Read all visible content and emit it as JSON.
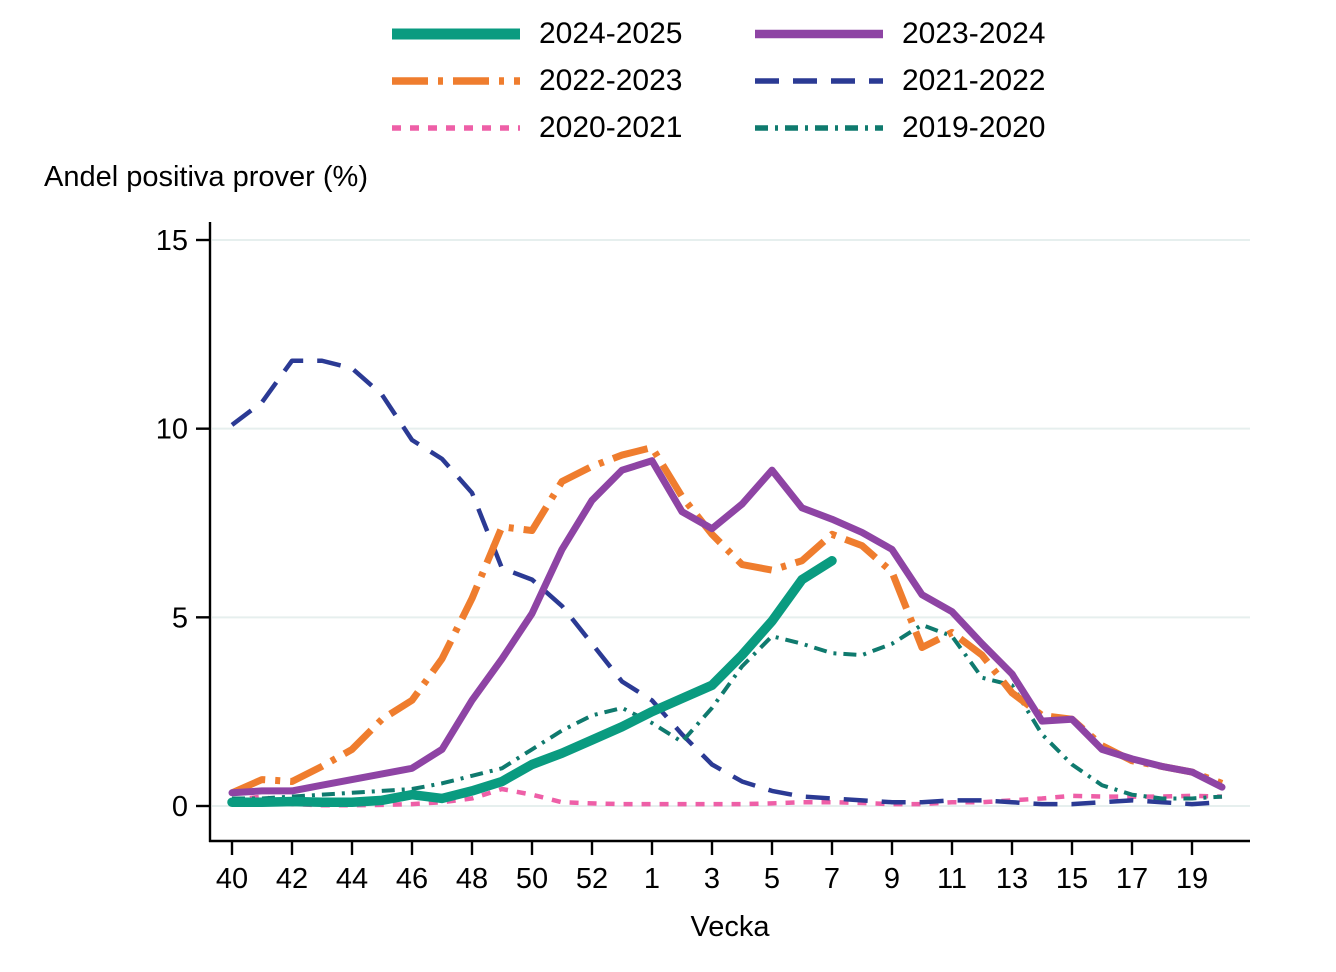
{
  "title": "Andel positiva prover (%)",
  "chart_data": {
    "type": "line",
    "title": "Andel positiva prover (%)",
    "xlabel": "Vecka",
    "ylabel": "Andel positiva prover (%)",
    "ylim": [
      0,
      15
    ],
    "yticks": [
      0,
      5,
      10,
      15
    ],
    "grid": "horizontal-light",
    "legend_position": "top-center-two-columns",
    "x_categories": [
      "40",
      "41",
      "42",
      "43",
      "44",
      "45",
      "46",
      "47",
      "48",
      "49",
      "50",
      "51",
      "52",
      "53",
      "1",
      "2",
      "3",
      "4",
      "5",
      "6",
      "7",
      "8",
      "9",
      "10",
      "11",
      "12",
      "13",
      "14",
      "15",
      "16",
      "17",
      "18",
      "19",
      "20"
    ],
    "x_tick_labels": [
      "40",
      "42",
      "44",
      "46",
      "48",
      "50",
      "52",
      "1",
      "3",
      "5",
      "7",
      "9",
      "11",
      "13",
      "15",
      "17",
      "19"
    ],
    "x_tick_every": 2,
    "series": [
      {
        "name": "2024-2025",
        "color": "#0a9b80",
        "style": "solid",
        "width": 9.5,
        "dash": "",
        "values": [
          0.1,
          0.1,
          0.12,
          0.1,
          0.1,
          0.15,
          0.3,
          0.2,
          0.4,
          0.65,
          1.1,
          1.4,
          1.75,
          2.1,
          2.5,
          2.85,
          3.2,
          4.0,
          4.9,
          6.0,
          6.5,
          null,
          null,
          null,
          null,
          null,
          null,
          null,
          null,
          null,
          null,
          null,
          null,
          null
        ]
      },
      {
        "name": "2023-2024",
        "color": "#8e44a4",
        "style": "solid",
        "width": 7,
        "dash": "",
        "values": [
          0.35,
          0.4,
          0.4,
          0.55,
          0.7,
          0.85,
          1.0,
          1.5,
          2.8,
          3.9,
          5.1,
          6.8,
          8.1,
          8.9,
          9.15,
          7.8,
          7.35,
          8.0,
          8.9,
          7.9,
          7.6,
          7.25,
          6.8,
          5.6,
          5.15,
          4.3,
          3.5,
          2.25,
          2.3,
          1.5,
          1.25,
          1.05,
          0.9,
          0.5
        ]
      },
      {
        "name": "2022-2023",
        "color": "#ef7d2e",
        "style": "dash-dot",
        "width": 7,
        "dash": "36 10 5 10",
        "values": [
          0.35,
          0.7,
          0.65,
          1.05,
          1.5,
          2.3,
          2.8,
          3.9,
          5.5,
          7.4,
          7.3,
          8.6,
          9.0,
          9.3,
          9.5,
          8.2,
          7.2,
          6.4,
          6.25,
          6.5,
          7.2,
          6.9,
          6.2,
          4.2,
          4.6,
          4.0,
          3.0,
          2.4,
          2.3,
          1.6,
          1.2,
          1.05,
          0.9,
          0.6
        ]
      },
      {
        "name": "2021-2022",
        "color": "#2b3a94",
        "style": "dashed",
        "width": 4.5,
        "dash": "24 14",
        "values": [
          10.1,
          10.7,
          11.8,
          11.8,
          11.6,
          10.9,
          9.7,
          9.2,
          8.3,
          6.3,
          6.0,
          5.3,
          4.3,
          3.3,
          2.8,
          1.9,
          1.1,
          0.65,
          0.4,
          0.25,
          0.2,
          0.15,
          0.1,
          0.1,
          0.15,
          0.15,
          0.1,
          0.05,
          0.05,
          0.1,
          0.15,
          0.1,
          0.05,
          0.1
        ]
      },
      {
        "name": "2020-2021",
        "color": "#ee5fa7",
        "style": "dotted",
        "width": 4.5,
        "dash": "9 9",
        "values": [
          0.15,
          0.25,
          0.05,
          0.02,
          0.02,
          0.03,
          0.05,
          0.1,
          0.2,
          0.45,
          0.3,
          0.1,
          0.07,
          0.05,
          0.05,
          0.05,
          0.05,
          0.05,
          0.07,
          0.1,
          0.1,
          0.08,
          0.05,
          0.05,
          0.1,
          0.1,
          0.15,
          0.2,
          0.27,
          0.25,
          0.25,
          0.25,
          0.27,
          0.25
        ]
      },
      {
        "name": "2019-2020",
        "color": "#0f7a6e",
        "style": "dash-dot",
        "width": 4,
        "dash": "13 7 3 7",
        "values": [
          0.2,
          0.2,
          0.25,
          0.3,
          0.35,
          0.4,
          0.45,
          0.6,
          0.8,
          1.0,
          1.5,
          2.0,
          2.4,
          2.6,
          2.2,
          1.7,
          2.6,
          3.7,
          4.5,
          4.3,
          4.05,
          4.0,
          4.3,
          4.8,
          4.5,
          3.4,
          3.2,
          1.9,
          1.1,
          0.55,
          0.3,
          0.2,
          0.2,
          0.25
        ]
      }
    ],
    "colors": {
      "axis": "#000000",
      "gridline": "#e6efee",
      "background": "#ffffff"
    }
  }
}
